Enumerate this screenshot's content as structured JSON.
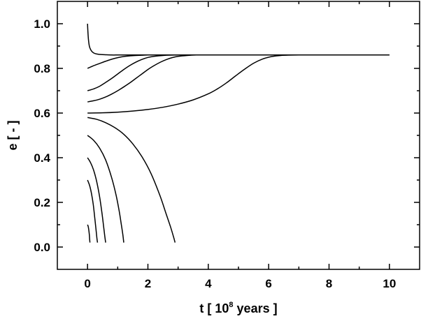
{
  "chart_data": {
    "type": "line",
    "title": "",
    "xlabel": {
      "prefix": "t [ 10",
      "superscript": "8",
      "suffix": " years ]"
    },
    "ylabel": "e [ - ]",
    "xlim": [
      -1,
      11
    ],
    "ylim": [
      -0.1,
      1.1
    ],
    "xticks": [
      0,
      2,
      4,
      6,
      8,
      10
    ],
    "yticks": [
      0.0,
      0.2,
      0.4,
      0.6,
      0.8,
      1.0
    ],
    "xtick_labels": [
      "0",
      "2",
      "4",
      "6",
      "8",
      "10"
    ],
    "ytick_labels": [
      "0.0",
      "0.2",
      "0.4",
      "0.6",
      "0.8",
      "1.0"
    ],
    "grid": false,
    "legend": "none",
    "series": [
      {
        "x": [
          0,
          0.01,
          0.03,
          0.06,
          0.1,
          0.15,
          0.22,
          0.32,
          0.45,
          0.6,
          0.8,
          1.0,
          1.2,
          2,
          4,
          6,
          8,
          10
        ],
        "y": [
          1.0,
          0.97,
          0.93,
          0.9,
          0.885,
          0.875,
          0.868,
          0.864,
          0.862,
          0.861,
          0.86,
          0.86,
          0.86,
          0.86,
          0.86,
          0.86,
          0.86,
          0.86
        ]
      },
      {
        "x": [
          0,
          0.2,
          0.4,
          0.6,
          0.8,
          1.0,
          1.2,
          1.5,
          1.8,
          2.0,
          2.5,
          3
        ],
        "y": [
          0.8,
          0.812,
          0.822,
          0.832,
          0.841,
          0.848,
          0.853,
          0.857,
          0.859,
          0.86,
          0.86,
          0.86
        ]
      },
      {
        "x": [
          0,
          0.2,
          0.4,
          0.6,
          0.8,
          1.0,
          1.2,
          1.4,
          1.6,
          1.8,
          2.0,
          2.2,
          2.5,
          3.0,
          4,
          6
        ],
        "y": [
          0.7,
          0.708,
          0.72,
          0.737,
          0.755,
          0.775,
          0.795,
          0.813,
          0.828,
          0.84,
          0.849,
          0.854,
          0.858,
          0.86,
          0.86,
          0.86
        ]
      },
      {
        "x": [
          0,
          0.2,
          0.4,
          0.6,
          0.8,
          1.0,
          1.2,
          1.4,
          1.6,
          1.8,
          2.0,
          2.2,
          2.4,
          2.6,
          2.8,
          3.0,
          3.3,
          3.6,
          4,
          6
        ],
        "y": [
          0.65,
          0.655,
          0.662,
          0.672,
          0.685,
          0.7,
          0.717,
          0.735,
          0.755,
          0.775,
          0.795,
          0.812,
          0.827,
          0.839,
          0.848,
          0.854,
          0.858,
          0.86,
          0.86,
          0.86
        ]
      },
      {
        "x": [
          0,
          0.5,
          1.0,
          1.5,
          2.0,
          2.5,
          3.0,
          3.5,
          4.0,
          4.3,
          4.6,
          4.9,
          5.2,
          5.5,
          5.8,
          6.1,
          6.4,
          7,
          8,
          10
        ],
        "y": [
          0.6,
          0.601,
          0.604,
          0.609,
          0.616,
          0.626,
          0.64,
          0.659,
          0.686,
          0.708,
          0.735,
          0.766,
          0.796,
          0.823,
          0.842,
          0.853,
          0.858,
          0.86,
          0.86,
          0.86
        ]
      },
      {
        "x": [
          0,
          0.3,
          0.6,
          0.9,
          1.2,
          1.5,
          1.8,
          2.1,
          2.4,
          2.6,
          2.75,
          2.85,
          2.9
        ],
        "y": [
          0.58,
          0.572,
          0.557,
          0.535,
          0.505,
          0.462,
          0.405,
          0.33,
          0.23,
          0.15,
          0.09,
          0.045,
          0.02
        ]
      },
      {
        "x": [
          0,
          0.2,
          0.4,
          0.6,
          0.8,
          0.95,
          1.05,
          1.12,
          1.17,
          1.2
        ],
        "y": [
          0.5,
          0.478,
          0.443,
          0.39,
          0.31,
          0.23,
          0.16,
          0.1,
          0.055,
          0.02
        ]
      },
      {
        "x": [
          0,
          0.1,
          0.2,
          0.3,
          0.4,
          0.48,
          0.53,
          0.57,
          0.6
        ],
        "y": [
          0.4,
          0.378,
          0.345,
          0.295,
          0.225,
          0.15,
          0.095,
          0.05,
          0.02
        ]
      },
      {
        "x": [
          0,
          0.07,
          0.13,
          0.19,
          0.24,
          0.28,
          0.31,
          0.33
        ],
        "y": [
          0.3,
          0.275,
          0.24,
          0.19,
          0.13,
          0.08,
          0.04,
          0.02
        ]
      },
      {
        "x": [
          0,
          0.02,
          0.04,
          0.06,
          0.07,
          0.08
        ],
        "y": [
          0.1,
          0.093,
          0.078,
          0.055,
          0.035,
          0.02
        ]
      }
    ]
  }
}
